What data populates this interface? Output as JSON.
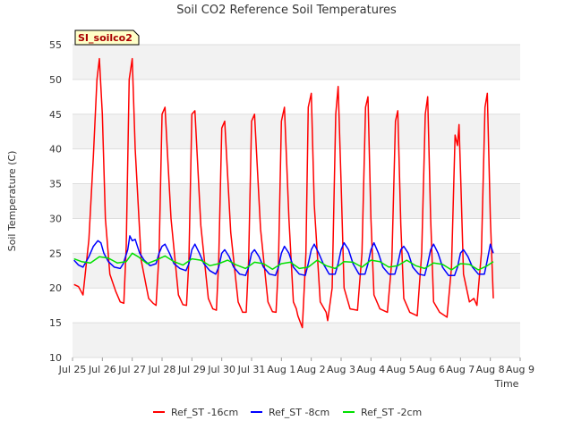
{
  "chart_data": {
    "type": "line",
    "title": "Soil CO2 Reference Soil Temperatures",
    "xlabel": "Time",
    "ylabel": "Soil Temperature (C)",
    "tag": "SI_soilco2",
    "ylim": [
      10,
      55
    ],
    "xlim": [
      0,
      15
    ],
    "yticks": [
      10,
      15,
      20,
      25,
      30,
      35,
      40,
      45,
      50,
      55
    ],
    "xticks": [
      {
        "x": 0,
        "label": "Jul 25"
      },
      {
        "x": 1,
        "label": "Jul 26"
      },
      {
        "x": 2,
        "label": "Jul 27"
      },
      {
        "x": 3,
        "label": "Jul 28"
      },
      {
        "x": 4,
        "label": "Jul 29"
      },
      {
        "x": 5,
        "label": "Jul 30"
      },
      {
        "x": 6,
        "label": "Jul 31"
      },
      {
        "x": 7,
        "label": "Aug 1"
      },
      {
        "x": 8,
        "label": "Aug 2"
      },
      {
        "x": 9,
        "label": "Aug 3"
      },
      {
        "x": 10,
        "label": "Aug 4"
      },
      {
        "x": 11,
        "label": "Aug 5"
      },
      {
        "x": 12,
        "label": "Aug 6"
      },
      {
        "x": 13,
        "label": "Aug 7"
      },
      {
        "x": 14,
        "label": "Aug 8"
      },
      {
        "x": 15,
        "label": "Aug 9"
      }
    ],
    "grid": "horizontal bands",
    "legend_position": "bottom",
    "series": [
      {
        "name": "Ref_ST -16cm",
        "color": "#ff0000",
        "x": [
          0.05,
          0.2,
          0.35,
          0.55,
          0.7,
          0.82,
          0.9,
          1.0,
          1.1,
          1.25,
          1.45,
          1.6,
          1.72,
          1.8,
          1.9,
          2.0,
          2.1,
          2.3,
          2.55,
          2.7,
          2.8,
          2.9,
          3.0,
          3.1,
          3.3,
          3.55,
          3.7,
          3.82,
          3.9,
          4.0,
          4.1,
          4.3,
          4.55,
          4.7,
          4.82,
          4.9,
          5.0,
          5.1,
          5.3,
          5.55,
          5.7,
          5.82,
          5.9,
          6.0,
          6.1,
          6.3,
          6.55,
          6.7,
          6.82,
          6.9,
          7.0,
          7.1,
          7.25,
          7.4,
          7.5,
          7.55,
          7.7,
          7.82,
          7.9,
          8.0,
          8.1,
          8.3,
          8.5,
          8.55,
          8.7,
          8.82,
          8.9,
          9.0,
          9.1,
          9.3,
          9.55,
          9.7,
          9.82,
          9.9,
          10.0,
          10.1,
          10.3,
          10.55,
          10.7,
          10.82,
          10.9,
          11.0,
          11.1,
          11.3,
          11.55,
          11.7,
          11.82,
          11.9,
          12.0,
          12.1,
          12.3,
          12.55,
          12.7,
          12.82,
          12.9,
          12.95,
          13.0,
          13.1,
          13.3,
          13.45,
          13.55,
          13.7,
          13.82,
          13.9,
          14.0,
          14.1
        ],
        "y": [
          20.5,
          20.2,
          19.0,
          27.0,
          39.0,
          50.0,
          53.0,
          45.0,
          30.0,
          22.0,
          19.5,
          18.0,
          17.8,
          26.0,
          50.0,
          53.0,
          40.0,
          24.0,
          18.5,
          17.8,
          17.5,
          25.0,
          45.0,
          46.0,
          30.0,
          19.0,
          17.6,
          17.5,
          24.0,
          45.0,
          45.5,
          29.0,
          18.5,
          17.0,
          16.8,
          24.0,
          43.0,
          44.0,
          28.0,
          18.0,
          16.5,
          16.5,
          24.0,
          44.0,
          45.0,
          28.5,
          18.0,
          16.6,
          16.5,
          23.5,
          44.0,
          46.0,
          30.0,
          18.0,
          17.0,
          16.0,
          14.3,
          25.0,
          46.0,
          48.0,
          32.0,
          18.0,
          16.5,
          15.3,
          20.0,
          45.0,
          49.0,
          35.0,
          20.0,
          17.0,
          16.8,
          25.0,
          46.0,
          47.5,
          30.0,
          19.0,
          17.0,
          16.5,
          24.0,
          44.0,
          45.5,
          29.0,
          18.5,
          16.5,
          16.0,
          25.0,
          45.0,
          47.5,
          30.0,
          18.0,
          16.5,
          15.8,
          23.0,
          42.0,
          40.5,
          43.5,
          37.0,
          22.0,
          18.0,
          18.5,
          17.5,
          25.0,
          46.0,
          48.0,
          30.0,
          18.5
        ]
      },
      {
        "name": "Ref_ST -8cm",
        "color": "#0000ff",
        "x": [
          0.05,
          0.2,
          0.35,
          0.55,
          0.7,
          0.85,
          0.95,
          1.05,
          1.2,
          1.4,
          1.6,
          1.7,
          1.85,
          1.92,
          2.0,
          2.1,
          2.25,
          2.4,
          2.6,
          2.8,
          2.9,
          3.0,
          3.1,
          3.25,
          3.4,
          3.6,
          3.8,
          3.9,
          4.0,
          4.1,
          4.25,
          4.4,
          4.6,
          4.8,
          4.9,
          5.0,
          5.1,
          5.25,
          5.4,
          5.6,
          5.8,
          5.9,
          6.0,
          6.1,
          6.25,
          6.4,
          6.6,
          6.8,
          6.9,
          7.0,
          7.1,
          7.25,
          7.4,
          7.6,
          7.8,
          7.9,
          8.0,
          8.1,
          8.25,
          8.4,
          8.6,
          8.8,
          8.9,
          9.0,
          9.1,
          9.25,
          9.4,
          9.6,
          9.8,
          9.9,
          10.0,
          10.1,
          10.25,
          10.4,
          10.6,
          10.8,
          10.9,
          11.0,
          11.1,
          11.25,
          11.4,
          11.6,
          11.8,
          11.9,
          12.0,
          12.1,
          12.25,
          12.4,
          12.6,
          12.8,
          12.9,
          13.0,
          13.1,
          13.25,
          13.4,
          13.6,
          13.8,
          13.9,
          14.0,
          14.1
        ],
        "y": [
          24.0,
          23.3,
          23.0,
          24.5,
          26.0,
          26.8,
          26.5,
          25.0,
          23.8,
          23.0,
          22.8,
          23.5,
          25.5,
          27.5,
          26.8,
          27.0,
          25.0,
          24.0,
          23.2,
          23.5,
          25.0,
          26.0,
          26.3,
          25.0,
          23.5,
          22.8,
          22.5,
          23.5,
          25.5,
          26.3,
          25.0,
          23.5,
          22.5,
          22.0,
          23.0,
          25.0,
          25.5,
          24.5,
          23.0,
          22.0,
          21.8,
          23.0,
          25.0,
          25.5,
          24.5,
          23.0,
          22.0,
          21.8,
          23.0,
          25.0,
          26.0,
          25.0,
          23.0,
          22.0,
          21.8,
          23.5,
          25.5,
          26.3,
          25.0,
          23.5,
          22.0,
          22.0,
          23.5,
          25.5,
          26.5,
          25.5,
          23.5,
          22.0,
          22.0,
          23.5,
          25.5,
          26.5,
          25.0,
          23.0,
          22.0,
          22.0,
          23.5,
          25.5,
          26.0,
          25.0,
          23.0,
          22.0,
          21.8,
          23.5,
          25.5,
          26.3,
          25.0,
          23.0,
          21.8,
          21.8,
          23.0,
          25.0,
          25.5,
          24.5,
          23.0,
          22.0,
          22.0,
          24.0,
          26.3,
          25.0
        ]
      },
      {
        "name": "Ref_ST -2cm",
        "color": "#00e000",
        "x": [
          0.05,
          0.3,
          0.6,
          0.9,
          1.2,
          1.5,
          1.8,
          2.0,
          2.2,
          2.5,
          2.8,
          3.1,
          3.4,
          3.7,
          4.0,
          4.3,
          4.6,
          4.9,
          5.2,
          5.5,
          5.8,
          6.1,
          6.4,
          6.7,
          7.0,
          7.3,
          7.6,
          7.9,
          8.2,
          8.5,
          8.8,
          9.1,
          9.4,
          9.7,
          10.0,
          10.3,
          10.6,
          10.9,
          11.2,
          11.5,
          11.8,
          12.1,
          12.4,
          12.7,
          13.0,
          13.3,
          13.6,
          13.9,
          14.1
        ],
        "y": [
          24.2,
          23.8,
          23.6,
          24.5,
          24.3,
          23.6,
          23.8,
          25.0,
          24.5,
          23.5,
          24.0,
          24.6,
          23.8,
          23.3,
          24.2,
          24.0,
          23.2,
          23.5,
          24.0,
          23.3,
          22.8,
          23.7,
          23.5,
          22.7,
          23.5,
          23.7,
          22.8,
          23.0,
          24.0,
          23.2,
          22.8,
          23.8,
          23.7,
          23.0,
          24.0,
          23.8,
          23.0,
          23.2,
          24.0,
          23.2,
          22.8,
          23.6,
          23.4,
          22.6,
          23.5,
          23.4,
          22.6,
          23.2,
          23.8
        ]
      }
    ]
  }
}
